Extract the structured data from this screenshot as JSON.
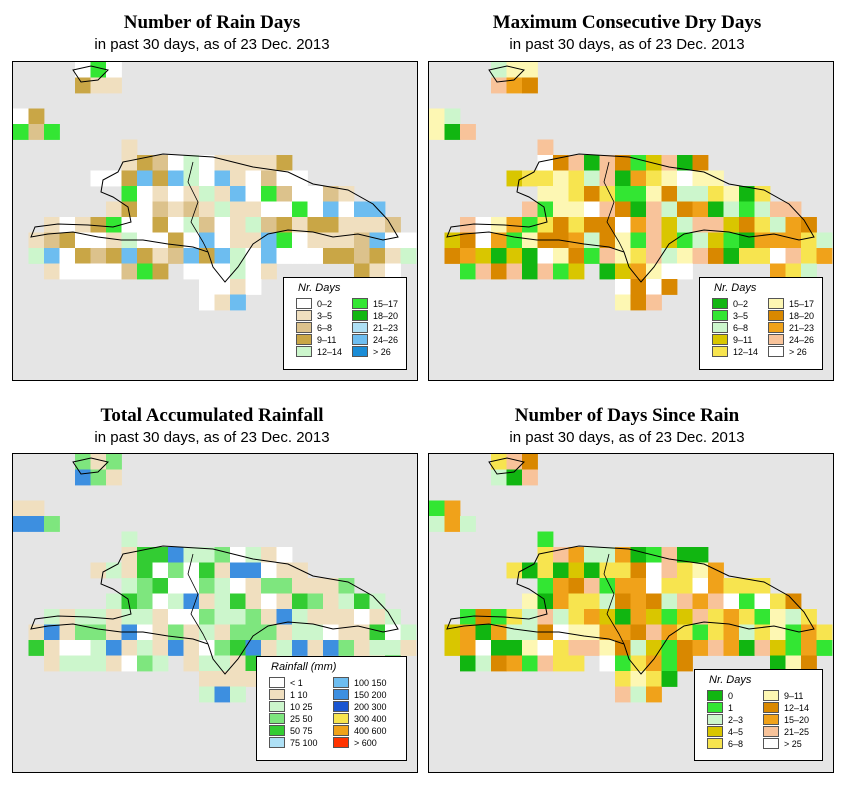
{
  "panels": [
    {
      "title": "Number of Rain Days",
      "subtitle": "in past 30 days, as of  23 Dec. 2013",
      "legend": {
        "title": "Nr. Days",
        "items": [
          {
            "label": "0–2",
            "color": "#ffffff"
          },
          {
            "label": "3–5",
            "color": "#f0dfbf"
          },
          {
            "label": "6–8",
            "color": "#dcc28c"
          },
          {
            "label": "9–11",
            "color": "#c9a646"
          },
          {
            "label": "12–14",
            "color": "#ccf6cc"
          },
          {
            "label": "15–17",
            "color": "#33e633"
          },
          {
            "label": "18–20",
            "color": "#11b611"
          },
          {
            "label": "21–23",
            "color": "#aee0f5"
          },
          {
            "label": "24–26",
            "color": "#6dbdf0"
          },
          {
            "label": "> 26",
            "color": "#1a8cd6"
          }
        ]
      }
    },
    {
      "title": "Maximum Consecutive Dry Days",
      "subtitle": "in past 30 days, as of  23 Dec. 2013",
      "legend": {
        "title": "Nr. Days",
        "items": [
          {
            "label": "0–2",
            "color": "#11b611"
          },
          {
            "label": "3–5",
            "color": "#33e633"
          },
          {
            "label": "6–8",
            "color": "#ccf6cc"
          },
          {
            "label": "9–11",
            "color": "#d9c600"
          },
          {
            "label": "12–14",
            "color": "#f7e44f"
          },
          {
            "label": "15–17",
            "color": "#fdf7b3"
          },
          {
            "label": "18–20",
            "color": "#d98800"
          },
          {
            "label": "21–23",
            "color": "#f0a21a"
          },
          {
            "label": "24–26",
            "color": "#f8c39a"
          },
          {
            "label": "> 26",
            "color": "#ffffff"
          }
        ]
      }
    },
    {
      "title": "Total Accumulated Rainfall",
      "subtitle": "in past 30 days, as of  23 Dec. 2013",
      "legend": {
        "title": "Rainfall (mm)",
        "items": [
          {
            "label": "< 1",
            "color": "#ffffff"
          },
          {
            "label": "1   10",
            "color": "#f0dfbf"
          },
          {
            "label": "10   25",
            "color": "#ccf6cc"
          },
          {
            "label": "25   50",
            "color": "#7ee67e"
          },
          {
            "label": "50   75",
            "color": "#33cc33"
          },
          {
            "label": "75   100",
            "color": "#aee0f5"
          },
          {
            "label": "100   150",
            "color": "#6dbdf0"
          },
          {
            "label": "150   200",
            "color": "#3d8fe0"
          },
          {
            "label": "200   300",
            "color": "#1a55d0"
          },
          {
            "label": "300   400",
            "color": "#f7e44f"
          },
          {
            "label": "400   600",
            "color": "#f0a21a"
          },
          {
            "label": "> 600",
            "color": "#ff3300"
          }
        ]
      }
    },
    {
      "title": "Number of Days Since Rain",
      "subtitle": "in past 30 days, as of  23 Dec. 2013",
      "legend": {
        "title": "Nr. Days",
        "items": [
          {
            "label": "0",
            "color": "#11b611"
          },
          {
            "label": "1",
            "color": "#33e633"
          },
          {
            "label": "2–3",
            "color": "#ccf6cc"
          },
          {
            "label": "4–5",
            "color": "#d9c600"
          },
          {
            "label": "6–8",
            "color": "#f7e44f"
          },
          {
            "label": "9–11",
            "color": "#fdf7b3"
          },
          {
            "label": "12–14",
            "color": "#d98800"
          },
          {
            "label": "15–20",
            "color": "#f0a21a"
          },
          {
            "label": "21–25",
            "color": "#f8c39a"
          },
          {
            "label": "> 25",
            "color": "#ffffff"
          }
        ]
      }
    }
  ]
}
